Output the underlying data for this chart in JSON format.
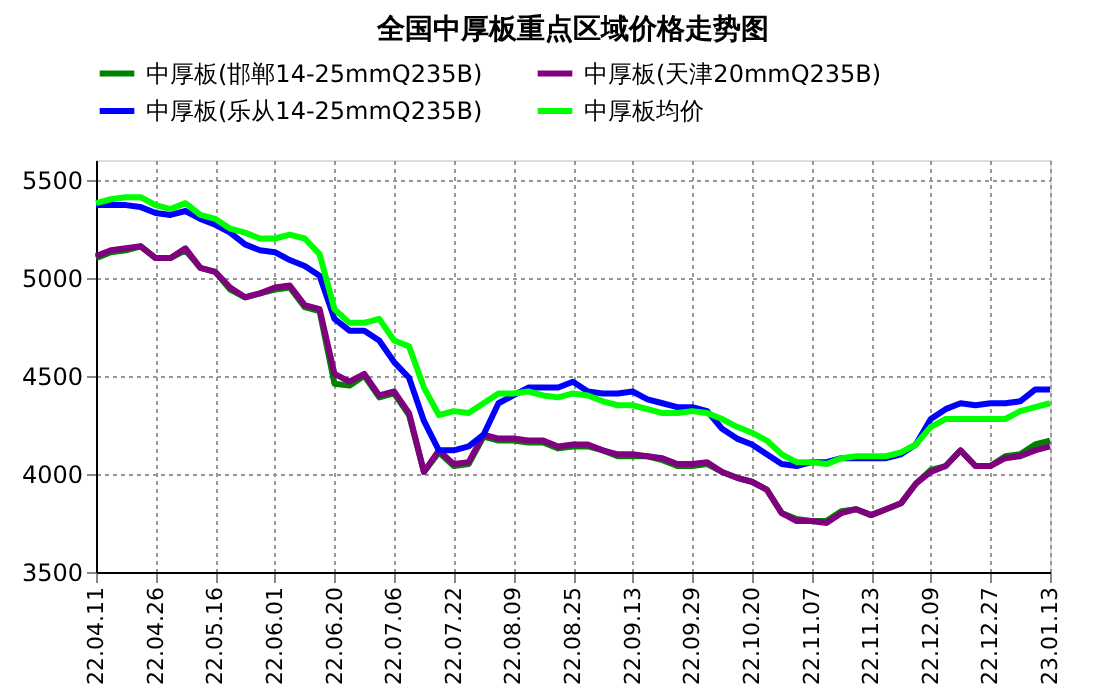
{
  "chart_data": {
    "type": "line",
    "title": "全国中厚板重点区域价格走势图",
    "categories": [
      "22.04.11",
      null,
      null,
      null,
      "22.04.26",
      null,
      null,
      null,
      "22.05.16",
      null,
      null,
      null,
      "22.06.01",
      null,
      null,
      null,
      "22.06.20",
      null,
      null,
      null,
      "22.07.06",
      null,
      null,
      null,
      "22.07.22",
      null,
      null,
      null,
      "22.08.09",
      null,
      null,
      null,
      "22.08.25",
      null,
      null,
      null,
      "22.09.13",
      null,
      null,
      null,
      "22.09.29",
      null,
      null,
      null,
      "22.10.20",
      null,
      null,
      null,
      "22.11.07",
      null,
      null,
      null,
      "22.11.23",
      null,
      null,
      null,
      "22.12.09",
      null,
      null,
      null,
      "22.12.27",
      null,
      null,
      null,
      "23.01.13"
    ],
    "series": [
      {
        "name": "中厚板(邯郸14-25mmQ235B)",
        "color": "#008000",
        "values": [
          5100,
          5130,
          5140,
          5160,
          5100,
          5100,
          5140,
          5050,
          5030,
          4940,
          4900,
          4920,
          4940,
          4950,
          4850,
          4830,
          4460,
          4450,
          4500,
          4390,
          4410,
          4300,
          4010,
          4110,
          4040,
          4050,
          4190,
          4170,
          4170,
          4160,
          4160,
          4130,
          4140,
          4140,
          4120,
          4090,
          4090,
          4090,
          4070,
          4040,
          4040,
          4050,
          4010,
          3980,
          3960,
          3920,
          3800,
          3770,
          3760,
          3760,
          3810,
          3820,
          3790,
          3820,
          3850,
          3950,
          4020,
          4040,
          4120,
          4040,
          4040,
          4090,
          4100,
          4150,
          4170
        ]
      },
      {
        "name": "中厚板(天津20mmQ235B)",
        "color": "#800080",
        "values": [
          5110,
          5140,
          5150,
          5160,
          5100,
          5100,
          5150,
          5050,
          5030,
          4950,
          4900,
          4920,
          4950,
          4960,
          4860,
          4840,
          4510,
          4470,
          4510,
          4400,
          4420,
          4310,
          4010,
          4120,
          4050,
          4060,
          4200,
          4180,
          4180,
          4170,
          4170,
          4140,
          4150,
          4150,
          4120,
          4100,
          4100,
          4090,
          4080,
          4050,
          4050,
          4060,
          4010,
          3980,
          3960,
          3920,
          3800,
          3760,
          3760,
          3750,
          3800,
          3820,
          3790,
          3820,
          3850,
          3950,
          4010,
          4040,
          4120,
          4040,
          4040,
          4080,
          4090,
          4120,
          4140
        ]
      },
      {
        "name": "中厚板(乐从14-25mmQ235B)",
        "color": "#0000ff",
        "values": [
          5370,
          5370,
          5370,
          5360,
          5330,
          5320,
          5340,
          5300,
          5270,
          5230,
          5170,
          5140,
          5130,
          5090,
          5060,
          5010,
          4790,
          4730,
          4730,
          4680,
          4570,
          4490,
          4270,
          4120,
          4120,
          4140,
          4200,
          4360,
          4400,
          4440,
          4440,
          4440,
          4470,
          4420,
          4410,
          4410,
          4420,
          4380,
          4360,
          4340,
          4340,
          4320,
          4230,
          4180,
          4150,
          4100,
          4050,
          4040,
          4060,
          4060,
          4080,
          4080,
          4080,
          4080,
          4100,
          4150,
          4280,
          4330,
          4360,
          4350,
          4360,
          4360,
          4370,
          4430,
          4430
        ]
      },
      {
        "name": "中厚板均价",
        "color": "#00ff00",
        "values": [
          5380,
          5400,
          5410,
          5410,
          5370,
          5350,
          5380,
          5320,
          5300,
          5250,
          5230,
          5200,
          5200,
          5220,
          5200,
          5120,
          4840,
          4770,
          4770,
          4790,
          4680,
          4650,
          4440,
          4300,
          4320,
          4310,
          4360,
          4410,
          4410,
          4420,
          4400,
          4390,
          4410,
          4400,
          4370,
          4350,
          4350,
          4330,
          4310,
          4310,
          4320,
          4310,
          4280,
          4240,
          4210,
          4170,
          4100,
          4060,
          4060,
          4050,
          4080,
          4090,
          4090,
          4090,
          4110,
          4150,
          4240,
          4280,
          4280,
          4280,
          4280,
          4280,
          4320,
          4340,
          4360
        ]
      }
    ],
    "ylim": [
      3500,
      5600
    ],
    "yticks": [
      3500,
      4000,
      4500,
      5000,
      5500
    ],
    "grid": true,
    "legend": "top",
    "line_style": "solid",
    "marker": "none"
  }
}
